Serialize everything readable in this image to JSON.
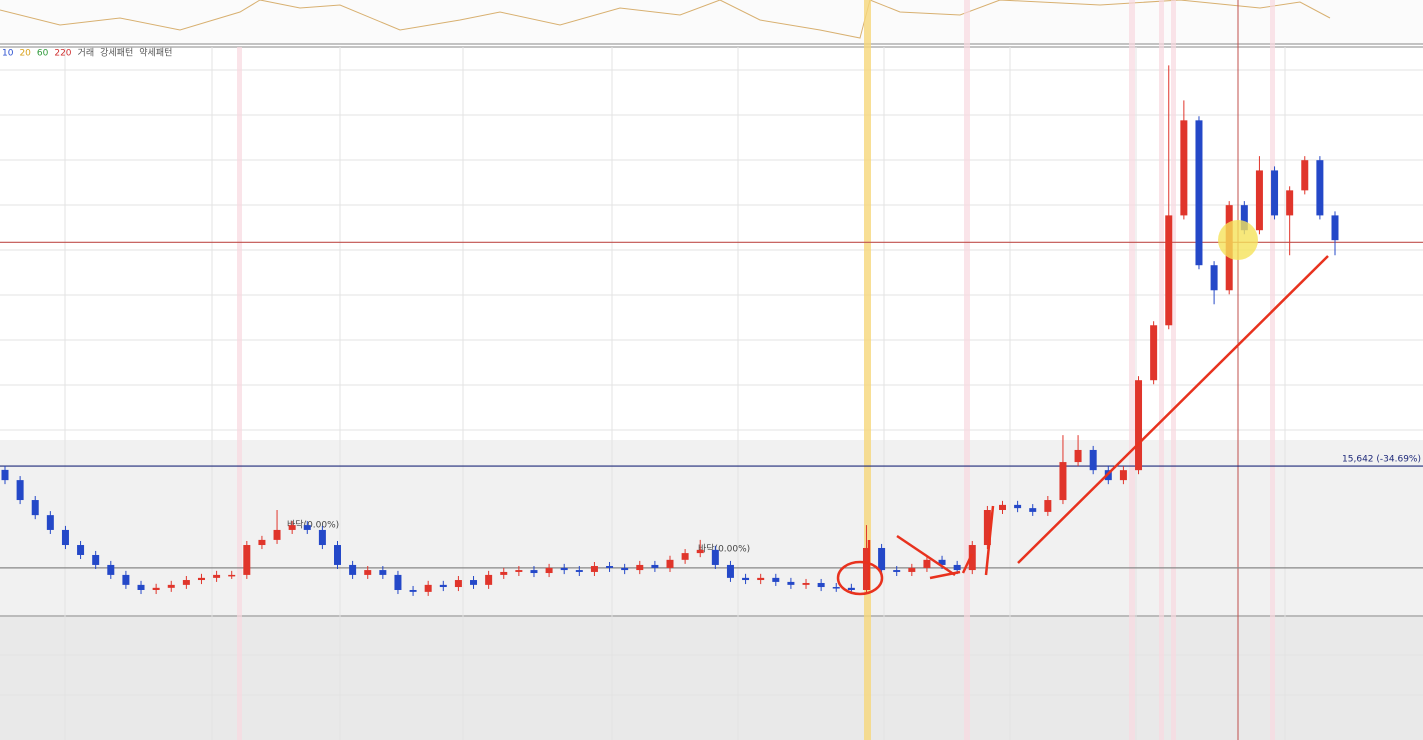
{
  "chart_data": {
    "type": "candlestick",
    "legend": [
      {
        "name": "10",
        "color": "#2a4fd0"
      },
      {
        "name": "20",
        "color": "#d9a21b"
      },
      {
        "name": "60",
        "color": "#2e9a3a"
      },
      {
        "name": "220",
        "color": "#d03030"
      },
      {
        "name": "거래",
        "color": "#555555"
      },
      {
        "name": "강세패턴",
        "color": "#555555"
      },
      {
        "name": "약세패턴",
        "color": "#555555"
      }
    ],
    "annotations": [
      "바닥(0.00%)",
      "바닥(0.00%)"
    ],
    "up_color": "#e0352b",
    "down_color": "#2448c8",
    "ylim": [
      10000,
      31500
    ],
    "hlines": [
      {
        "value": 23950,
        "color": "#c0504d"
      },
      {
        "value": 15642,
        "color": "#1f2a7a",
        "label": "15,642 (-34.69%)"
      },
      {
        "value": 11860,
        "color": "#888888"
      }
    ],
    "open": [
      15500,
      15120,
      14380,
      13820,
      13270,
      12710,
      12340,
      11970,
      11600,
      11230,
      11040,
      11120,
      11230,
      11410,
      11490,
      11600,
      11600,
      12710,
      12900,
      13270,
      13450,
      13270,
      12710,
      11970,
      11600,
      11780,
      11600,
      11040,
      10970,
      11230,
      11150,
      11410,
      11230,
      11600,
      11710,
      11780,
      11670,
      11860,
      11780,
      11710,
      11930,
      11860,
      11780,
      11970,
      11860,
      12160,
      12410,
      12530,
      11970,
      11490,
      11410,
      11490,
      11340,
      11230,
      11300,
      11150,
      11120,
      11040,
      12600,
      11780,
      11710,
      11860,
      12160,
      11970,
      11780,
      12710,
      14010,
      14200,
      14080,
      13940,
      14380,
      15790,
      16240,
      15490,
      15120,
      15490,
      18830,
      20870,
      24950,
      28480,
      23100,
      22170,
      25330,
      24400,
      26620,
      24950,
      25880,
      27000,
      24950
    ],
    "high": [
      15650,
      15270,
      14530,
      13970,
      13420,
      12860,
      12490,
      12120,
      11750,
      11380,
      11270,
      11380,
      11560,
      11640,
      11750,
      11750,
      12860,
      13050,
      14010,
      13600,
      13600,
      13420,
      12860,
      12120,
      11930,
      11930,
      11750,
      11190,
      11380,
      11380,
      11560,
      11560,
      11750,
      11860,
      11930,
      11930,
      12010,
      12010,
      11930,
      12080,
      12080,
      12010,
      12120,
      12120,
      12310,
      12560,
      12900,
      12680,
      12120,
      11640,
      11640,
      11640,
      11490,
      11450,
      11450,
      11300,
      11270,
      13450,
      12750,
      11930,
      12010,
      12310,
      12310,
      12120,
      12860,
      14160,
      14350,
      14350,
      14230,
      14530,
      16790,
      16790,
      16390,
      15640,
      15640,
      18980,
      21020,
      30520,
      29220,
      28630,
      23250,
      25480,
      25480,
      27150,
      26770,
      26030,
      27150,
      27150,
      25100
    ],
    "low": [
      14970,
      14230,
      13670,
      13120,
      12560,
      12190,
      11820,
      11450,
      11080,
      10890,
      10890,
      10970,
      11080,
      11260,
      11340,
      11450,
      11450,
      12560,
      12750,
      13120,
      13120,
      12560,
      11820,
      11450,
      11450,
      11450,
      10890,
      10820,
      10820,
      11000,
      11000,
      11080,
      11080,
      11450,
      11560,
      11520,
      11520,
      11630,
      11560,
      11560,
      11710,
      11630,
      11630,
      11710,
      11710,
      12010,
      12260,
      11820,
      11340,
      11260,
      11260,
      11190,
      11080,
      11080,
      11000,
      10970,
      10890,
      10890,
      11630,
      11560,
      11560,
      11710,
      11820,
      11630,
      11630,
      12560,
      13860,
      13930,
      13790,
      13790,
      14230,
      15640,
      15340,
      14970,
      14970,
      15340,
      18680,
      20720,
      24800,
      22950,
      21650,
      22020,
      24250,
      24250,
      24800,
      23470,
      25730,
      24800,
      23470
    ],
    "close": [
      15120,
      14380,
      13820,
      13270,
      12710,
      12340,
      11970,
      11600,
      11230,
      11040,
      11120,
      11230,
      11410,
      11490,
      11600,
      11600,
      12710,
      12900,
      13270,
      13450,
      13270,
      12710,
      11970,
      11600,
      11780,
      11600,
      11040,
      10970,
      11230,
      11150,
      11410,
      11230,
      11600,
      11710,
      11780,
      11670,
      11860,
      11780,
      11710,
      11930,
      11860,
      11780,
      11970,
      11860,
      12160,
      12410,
      12530,
      11970,
      11490,
      11410,
      11490,
      11340,
      11230,
      11300,
      11150,
      11120,
      11040,
      12600,
      11780,
      11710,
      11860,
      12160,
      11970,
      11780,
      12710,
      14010,
      14200,
      14080,
      13940,
      14380,
      15790,
      16240,
      15490,
      15120,
      15490,
      18830,
      20870,
      24950,
      28480,
      23100,
      22170,
      25330,
      24400,
      26620,
      24950,
      25880,
      27000,
      24950,
      24030
    ]
  }
}
